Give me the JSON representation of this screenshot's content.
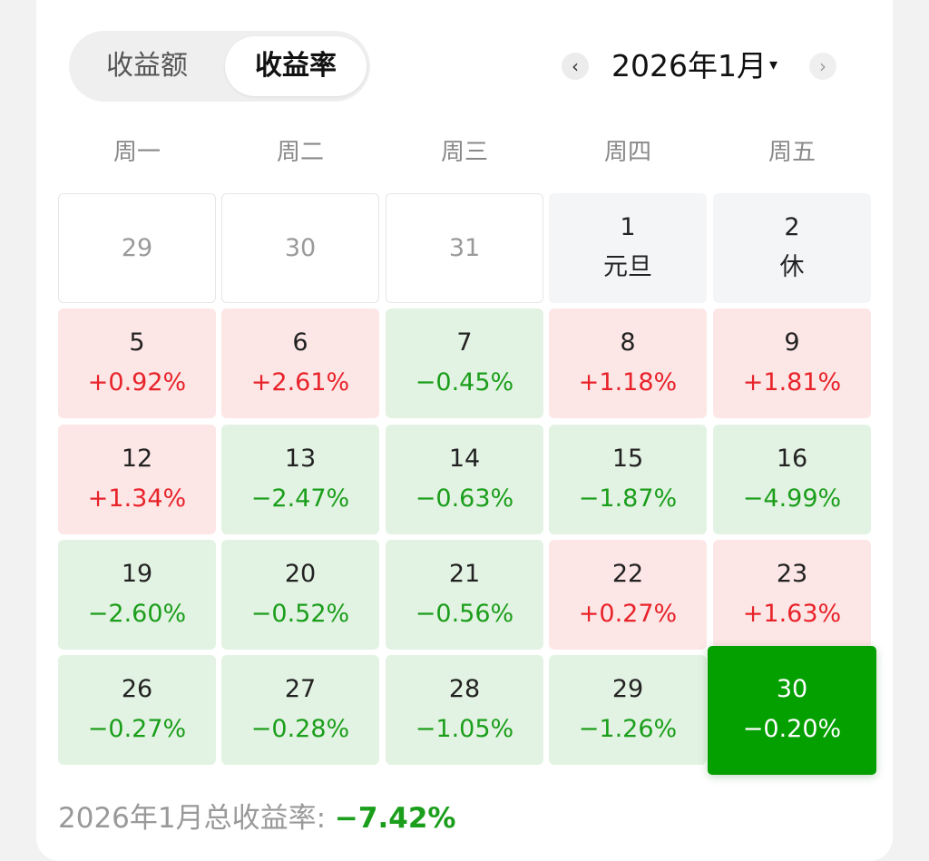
{
  "tabs": {
    "amount": "收益额",
    "rate": "收益率"
  },
  "nav": {
    "month": "2026年1月",
    "prev": "‹",
    "next": "›",
    "caret": "▾"
  },
  "weekdays": [
    "周一",
    "周二",
    "周三",
    "周四",
    "周五"
  ],
  "cells": [
    {
      "day": "29",
      "value": "",
      "state": "prev"
    },
    {
      "day": "30",
      "value": "",
      "state": "prev"
    },
    {
      "day": "31",
      "value": "",
      "state": "prev"
    },
    {
      "day": "1",
      "value": "元旦",
      "state": "holiday"
    },
    {
      "day": "2",
      "value": "休",
      "state": "holiday"
    },
    {
      "day": "5",
      "value": "+0.92%",
      "state": "up"
    },
    {
      "day": "6",
      "value": "+2.61%",
      "state": "up"
    },
    {
      "day": "7",
      "value": "−0.45%",
      "state": "down"
    },
    {
      "day": "8",
      "value": "+1.18%",
      "state": "up"
    },
    {
      "day": "9",
      "value": "+1.81%",
      "state": "up"
    },
    {
      "day": "12",
      "value": "+1.34%",
      "state": "up"
    },
    {
      "day": "13",
      "value": "−2.47%",
      "state": "down"
    },
    {
      "day": "14",
      "value": "−0.63%",
      "state": "down"
    },
    {
      "day": "15",
      "value": "−1.87%",
      "state": "down"
    },
    {
      "day": "16",
      "value": "−4.99%",
      "state": "down"
    },
    {
      "day": "19",
      "value": "−2.60%",
      "state": "down"
    },
    {
      "day": "20",
      "value": "−0.52%",
      "state": "down"
    },
    {
      "day": "21",
      "value": "−0.56%",
      "state": "down"
    },
    {
      "day": "22",
      "value": "+0.27%",
      "state": "up"
    },
    {
      "day": "23",
      "value": "+1.63%",
      "state": "up"
    },
    {
      "day": "26",
      "value": "−0.27%",
      "state": "down"
    },
    {
      "day": "27",
      "value": "−0.28%",
      "state": "down"
    },
    {
      "day": "28",
      "value": "−1.05%",
      "state": "down"
    },
    {
      "day": "29",
      "value": "−1.26%",
      "state": "down"
    },
    {
      "day": "30",
      "value": "−0.20%",
      "state": "selected"
    }
  ],
  "footer": {
    "label": "2026年1月总收益率: ",
    "total": "−7.42%"
  },
  "colors": {
    "up": "#e8232a",
    "down": "#1b9e1b",
    "selected": "#04a000"
  }
}
